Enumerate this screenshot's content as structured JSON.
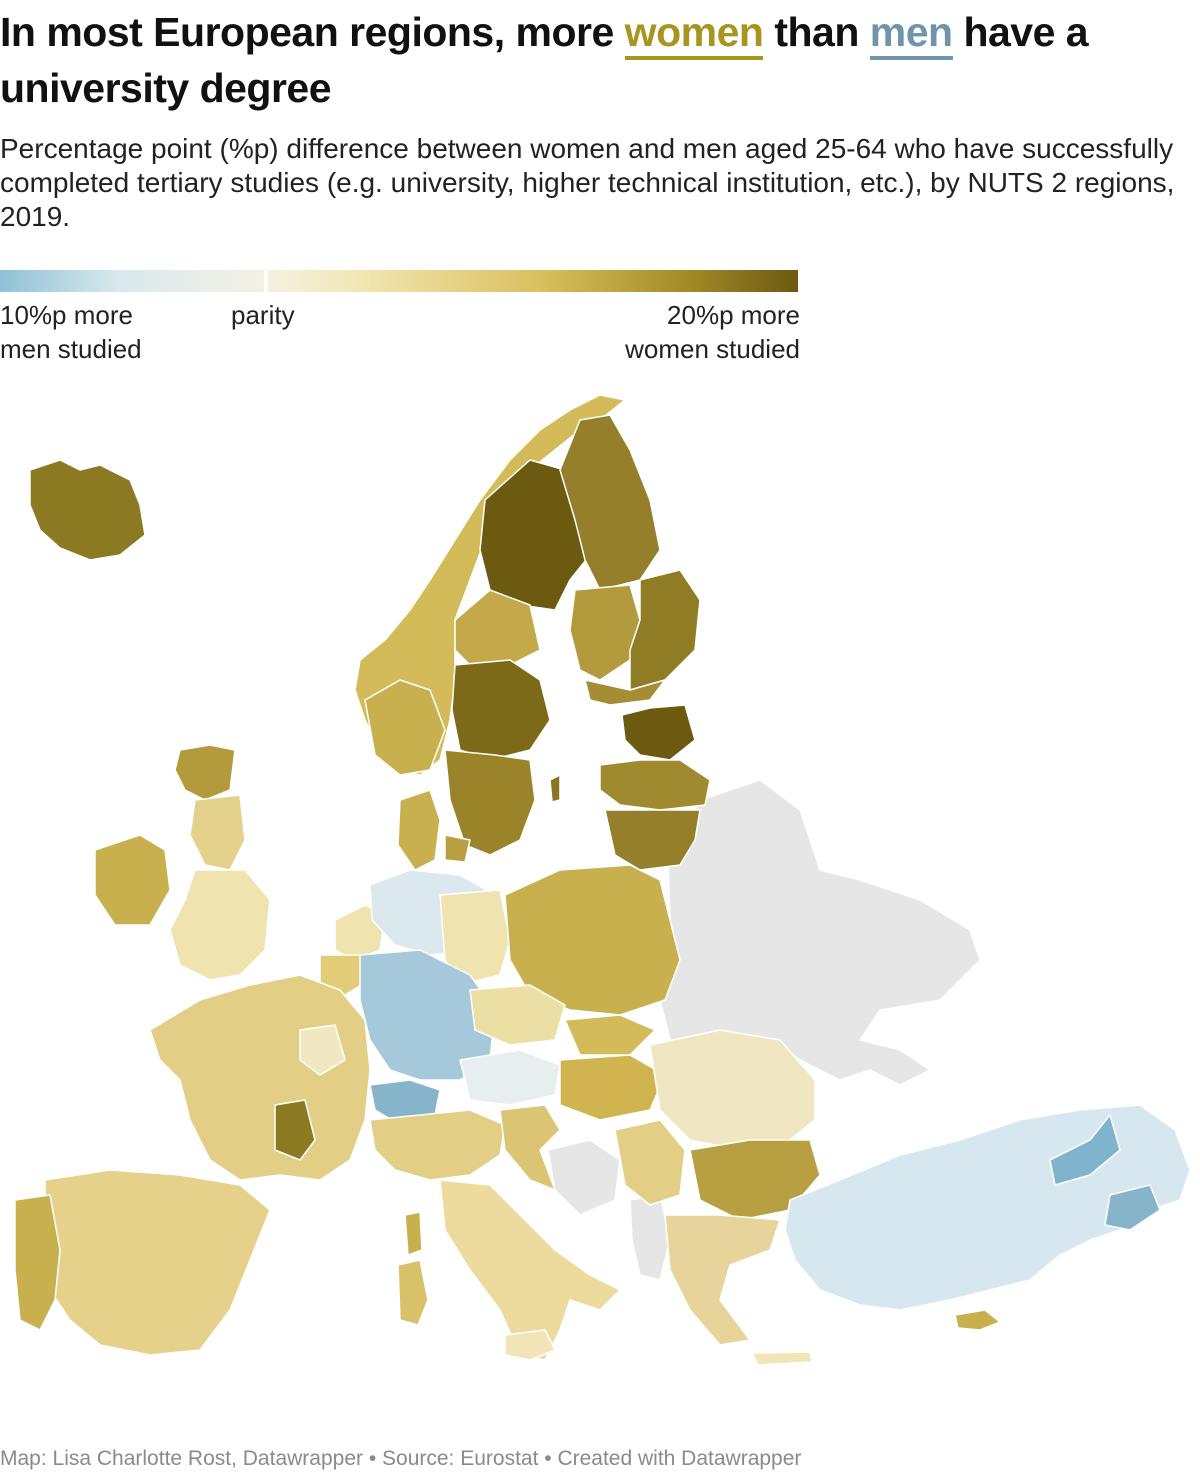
{
  "title": {
    "part1": "In most European regions, more ",
    "women": "women",
    "part2": " than ",
    "men": "men",
    "part3": " have a university degree"
  },
  "subtitle": "Percentage point (%p) difference between women and men aged 25-64 who have successfully completed tertiary studies (e.g. university, higher technical institution, etc.), by NUTS 2 regions, 2019.",
  "legend": {
    "left_line1": "10%p more",
    "left_line2": "men studied",
    "mid": "parity",
    "right_line1": "20%p more",
    "right_line2": "women studied",
    "scale_min": -10,
    "scale_mid": 0,
    "scale_max": 20
  },
  "colors": {
    "women_accent": "#a8951f",
    "men_accent": "#6f94ab",
    "no_data": "#e6e6e6",
    "scale": [
      "#8fc1d6",
      "#d9e9ee",
      "#f4f1e3",
      "#f2e7b4",
      "#d9bf5c",
      "#a88e2a",
      "#6b5a10"
    ]
  },
  "footer": "Map: Lisa Charlotte Rost, Datawrapper • Source: Eurostat • Created with Datawrapper"
}
